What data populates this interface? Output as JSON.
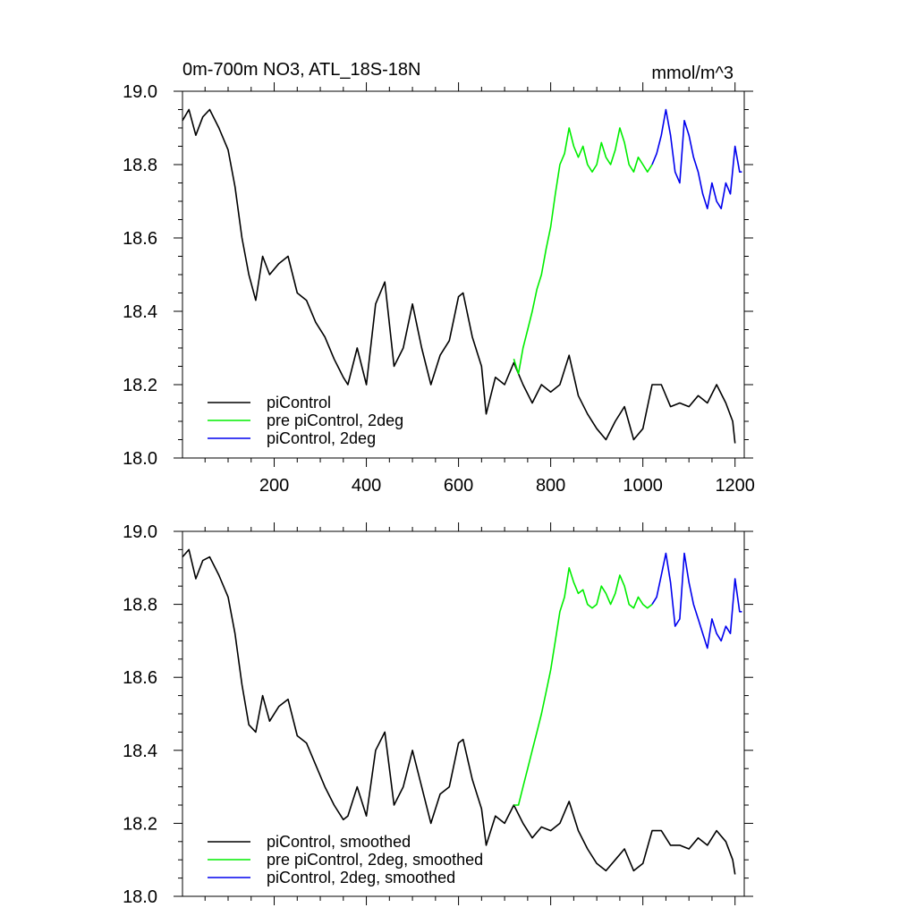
{
  "figure": {
    "title": "0m-700m NO3, ATL_18S-18N",
    "units": "mmol/m^3"
  },
  "chart_data": [
    {
      "type": "line",
      "xlim": [
        1,
        1220
      ],
      "ylim": [
        18.0,
        19.0
      ],
      "x_ticks": [
        200,
        400,
        600,
        800,
        1000,
        1200
      ],
      "x_ticklabels": [
        "200",
        "400",
        "600",
        "800",
        "1000",
        "1200"
      ],
      "y_ticks": [
        18.0,
        18.2,
        18.4,
        18.6,
        18.8,
        19.0
      ],
      "y_ticklabels": [
        "18.0",
        "18.2",
        "18.4",
        "18.6",
        "18.8",
        "19.0"
      ],
      "legend_position": "lower-left",
      "grid": false,
      "series": [
        {
          "name": "piControl",
          "color": "#000000",
          "x": [
            1,
            15,
            30,
            45,
            60,
            80,
            100,
            115,
            130,
            145,
            160,
            175,
            190,
            210,
            230,
            250,
            270,
            290,
            310,
            330,
            350,
            360,
            380,
            400,
            420,
            440,
            460,
            480,
            500,
            520,
            540,
            560,
            580,
            600,
            610,
            630,
            650,
            660,
            680,
            700,
            720,
            740,
            760,
            780,
            800,
            820,
            840,
            860,
            880,
            900,
            920,
            940,
            960,
            980,
            1000,
            1020,
            1040,
            1060,
            1080,
            1100,
            1120,
            1140,
            1160,
            1180,
            1195,
            1200
          ],
          "y": [
            18.92,
            18.95,
            18.88,
            18.93,
            18.95,
            18.9,
            18.84,
            18.74,
            18.6,
            18.5,
            18.43,
            18.55,
            18.5,
            18.53,
            18.55,
            18.45,
            18.43,
            18.37,
            18.33,
            18.27,
            18.22,
            18.2,
            18.3,
            18.2,
            18.42,
            18.48,
            18.25,
            18.3,
            18.42,
            18.3,
            18.2,
            18.28,
            18.32,
            18.44,
            18.45,
            18.33,
            18.25,
            18.12,
            18.22,
            18.2,
            18.26,
            18.2,
            18.15,
            18.2,
            18.18,
            18.2,
            18.28,
            18.17,
            18.12,
            18.08,
            18.05,
            18.1,
            18.14,
            18.05,
            18.08,
            18.2,
            18.2,
            18.14,
            18.15,
            18.14,
            18.17,
            18.15,
            18.2,
            18.15,
            18.1,
            18.04
          ]
        },
        {
          "name": "pre piControl, 2deg",
          "color": "#00ee00",
          "x": [
            720,
            730,
            740,
            750,
            760,
            770,
            780,
            790,
            800,
            810,
            820,
            830,
            840,
            850,
            860,
            870,
            880,
            890,
            900,
            910,
            920,
            930,
            940,
            950,
            960,
            970,
            980,
            990,
            1000,
            1010,
            1020
          ],
          "y": [
            18.27,
            18.23,
            18.3,
            18.35,
            18.4,
            18.46,
            18.5,
            18.57,
            18.63,
            18.72,
            18.8,
            18.83,
            18.9,
            18.85,
            18.82,
            18.85,
            18.8,
            18.78,
            18.8,
            18.86,
            18.82,
            18.8,
            18.84,
            18.9,
            18.86,
            18.8,
            18.78,
            18.82,
            18.8,
            18.78,
            18.8
          ]
        },
        {
          "name": "piControl, 2deg",
          "color": "#0000ee",
          "x": [
            1020,
            1030,
            1040,
            1050,
            1060,
            1070,
            1080,
            1090,
            1100,
            1110,
            1120,
            1130,
            1140,
            1150,
            1160,
            1170,
            1180,
            1190,
            1200,
            1210,
            1215
          ],
          "y": [
            18.8,
            18.83,
            18.88,
            18.95,
            18.88,
            18.78,
            18.75,
            18.92,
            18.88,
            18.82,
            18.78,
            18.72,
            18.68,
            18.75,
            18.7,
            18.68,
            18.75,
            18.72,
            18.85,
            18.78,
            18.78
          ]
        }
      ]
    },
    {
      "type": "line",
      "xlim": [
        1,
        1220
      ],
      "ylim": [
        18.0,
        19.0
      ],
      "x_ticks": [
        200,
        400,
        600,
        800,
        1000,
        1200
      ],
      "x_ticklabels": [],
      "y_ticks": [
        18.0,
        18.2,
        18.4,
        18.6,
        18.8,
        19.0
      ],
      "y_ticklabels": [
        "18.0",
        "18.2",
        "18.4",
        "18.6",
        "18.8",
        "19.0"
      ],
      "legend_position": "lower-left",
      "grid": false,
      "series": [
        {
          "name": "piControl, smoothed",
          "color": "#000000",
          "x": [
            1,
            15,
            30,
            45,
            60,
            80,
            100,
            115,
            130,
            145,
            160,
            175,
            190,
            210,
            230,
            250,
            270,
            290,
            310,
            330,
            350,
            360,
            380,
            400,
            420,
            440,
            460,
            480,
            500,
            520,
            540,
            560,
            580,
            600,
            610,
            630,
            650,
            660,
            680,
            700,
            720,
            740,
            760,
            780,
            800,
            820,
            840,
            860,
            880,
            900,
            920,
            940,
            960,
            980,
            1000,
            1020,
            1040,
            1060,
            1080,
            1100,
            1120,
            1140,
            1160,
            1180,
            1195,
            1200
          ],
          "y": [
            18.93,
            18.95,
            18.87,
            18.92,
            18.93,
            18.88,
            18.82,
            18.72,
            18.58,
            18.47,
            18.45,
            18.55,
            18.48,
            18.52,
            18.54,
            18.44,
            18.42,
            18.36,
            18.3,
            18.25,
            18.21,
            18.22,
            18.3,
            18.22,
            18.4,
            18.45,
            18.25,
            18.3,
            18.4,
            18.3,
            18.2,
            18.28,
            18.3,
            18.42,
            18.43,
            18.32,
            18.24,
            18.14,
            18.22,
            18.2,
            18.25,
            18.2,
            18.16,
            18.19,
            18.18,
            18.2,
            18.26,
            18.18,
            18.13,
            18.09,
            18.07,
            18.1,
            18.13,
            18.07,
            18.09,
            18.18,
            18.18,
            18.14,
            18.14,
            18.13,
            18.16,
            18.14,
            18.18,
            18.15,
            18.1,
            18.06
          ]
        },
        {
          "name": "pre piControl, 2deg, smoothed",
          "color": "#00ee00",
          "x": [
            720,
            730,
            740,
            750,
            760,
            770,
            780,
            790,
            800,
            810,
            820,
            830,
            840,
            850,
            860,
            870,
            880,
            890,
            900,
            910,
            920,
            930,
            940,
            950,
            960,
            970,
            980,
            990,
            1000,
            1010,
            1020
          ],
          "y": [
            18.25,
            18.25,
            18.3,
            18.35,
            18.4,
            18.45,
            18.5,
            18.56,
            18.62,
            18.7,
            18.78,
            18.82,
            18.9,
            18.86,
            18.83,
            18.84,
            18.8,
            18.79,
            18.8,
            18.85,
            18.83,
            18.8,
            18.83,
            18.88,
            18.85,
            18.8,
            18.79,
            18.82,
            18.8,
            18.79,
            18.8
          ]
        },
        {
          "name": "piControl, 2deg, smoothed",
          "color": "#0000ee",
          "x": [
            1020,
            1030,
            1040,
            1050,
            1060,
            1070,
            1080,
            1090,
            1100,
            1110,
            1120,
            1130,
            1140,
            1150,
            1160,
            1170,
            1180,
            1190,
            1200,
            1210,
            1215
          ],
          "y": [
            18.8,
            18.82,
            18.88,
            18.94,
            18.86,
            18.74,
            18.76,
            18.94,
            18.86,
            18.8,
            18.76,
            18.72,
            18.68,
            18.76,
            18.72,
            18.7,
            18.74,
            18.72,
            18.87,
            18.78,
            18.78
          ]
        }
      ]
    }
  ]
}
